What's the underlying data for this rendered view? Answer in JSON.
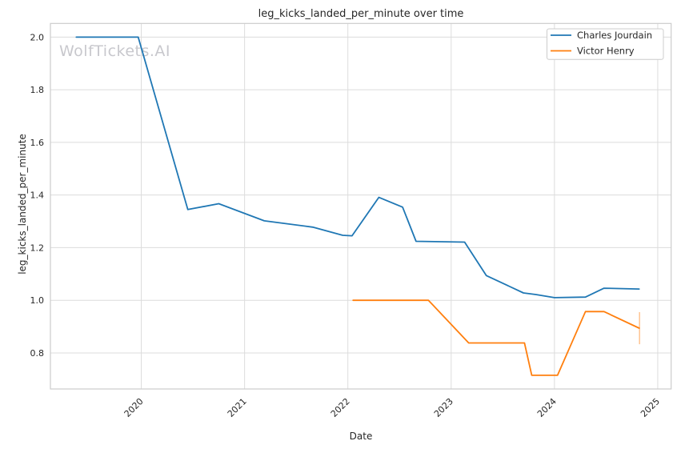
{
  "chart_data": {
    "type": "line",
    "title": "leg_kicks_landed_per_minute over time",
    "xlabel": "Date",
    "ylabel": "leg_kicks_landed_per_minute",
    "watermark": "WolfTickets.AI",
    "grid": true,
    "legend_position": "upper right",
    "xlim": [
      2019.12,
      2025.13
    ],
    "ylim": [
      0.663,
      2.052
    ],
    "xticks": [
      2020,
      2021,
      2022,
      2023,
      2024,
      2025
    ],
    "xtick_labels": [
      "2020",
      "2021",
      "2022",
      "2023",
      "2024",
      "2025"
    ],
    "yticks": [
      0.8,
      1.0,
      1.2,
      1.4,
      1.6,
      1.8,
      2.0
    ],
    "ytick_labels": [
      "0.8",
      "1.0",
      "1.2",
      "1.4",
      "1.6",
      "1.8",
      "2.0"
    ],
    "colors": {
      "grid": "#dcdcdc",
      "spine": "#cccccc",
      "text": "#262626",
      "watermark": "#c8c8cd",
      "series_blue": "#1f77b4",
      "series_orange": "#ff7f0e"
    },
    "series": [
      {
        "name": "Charles Jourdain",
        "color": "#1f77b4",
        "x": [
          2019.37,
          2019.97,
          2020.45,
          2020.75,
          2021.19,
          2021.66,
          2021.95,
          2022.04,
          2022.3,
          2022.53,
          2022.66,
          2023.13,
          2023.34,
          2023.7,
          2023.82,
          2024.0,
          2024.3,
          2024.48,
          2024.82
        ],
        "y": [
          2.0,
          2.0,
          1.345,
          1.367,
          1.302,
          1.278,
          1.247,
          1.245,
          1.391,
          1.354,
          1.224,
          1.221,
          1.094,
          1.028,
          1.022,
          1.01,
          1.012,
          1.046,
          1.043
        ]
      },
      {
        "name": "Victor Henry",
        "color": "#ff7f0e",
        "x": [
          2022.05,
          2022.78,
          2023.17,
          2023.71,
          2023.78,
          2024.03,
          2024.3,
          2024.48,
          2024.82
        ],
        "y": [
          1.0,
          1.0,
          0.838,
          0.838,
          0.715,
          0.715,
          0.957,
          0.957,
          0.894
        ],
        "error_bar": {
          "x": 2024.82,
          "y_low": 0.833,
          "y_high": 0.955
        }
      }
    ]
  }
}
